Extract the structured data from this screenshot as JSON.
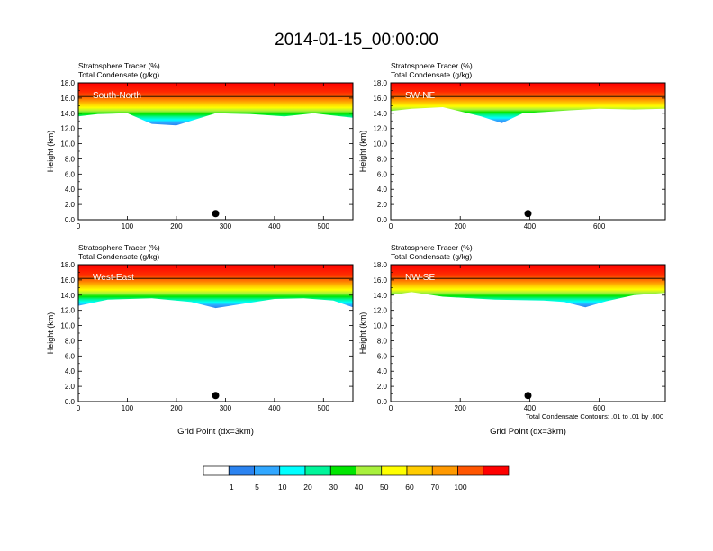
{
  "figure": {
    "title": "2014-01-15_00:00:00",
    "contour_note": "Total Condensate Contours: .01 to .01 by .000",
    "xlabel": "Grid Point (dx=3km)"
  },
  "colorbar": {
    "labels": [
      "1",
      "5",
      "10",
      "20",
      "30",
      "40",
      "50",
      "60",
      "70",
      "100"
    ],
    "colors": [
      "#ffffff",
      "#2b83f0",
      "#31a7ff",
      "#00ffff",
      "#00f59a",
      "#00e600",
      "#a8f03c",
      "#ffff00",
      "#ffcc00",
      "#ff9900",
      "#ff5500",
      "#ff0000"
    ]
  },
  "chart_data": [
    {
      "type": "heatmap",
      "panel": "South-North",
      "title_lines": [
        "Stratosphere Tracer   (%)",
        "Total Condensate   (g/kg)"
      ],
      "ylabel": "Height (km)",
      "xlim": [
        0,
        560
      ],
      "ylim": [
        0,
        18
      ],
      "xticks": [
        0,
        100,
        200,
        300,
        400,
        500
      ],
      "yticks": [
        "0.0",
        "2.0",
        "4.0",
        "6.0",
        "8.0",
        "10.0",
        "12.0",
        "14.0",
        "16.0",
        "18.0"
      ],
      "tropopause_km": [
        [
          0,
          13.6
        ],
        [
          40,
          13.9
        ],
        [
          100,
          14.0
        ],
        [
          150,
          12.6
        ],
        [
          200,
          12.4
        ],
        [
          240,
          13.2
        ],
        [
          280,
          14.0
        ],
        [
          350,
          13.9
        ],
        [
          420,
          13.6
        ],
        [
          480,
          14.0
        ],
        [
          560,
          13.4
        ]
      ],
      "marker_x": 280
    },
    {
      "type": "heatmap",
      "panel": "SW-NE",
      "title_lines": [
        "Stratosphere Tracer   (%)",
        "Total Condensate   (g/kg)"
      ],
      "ylabel": "Height (km)",
      "xlim": [
        0,
        790
      ],
      "ylim": [
        0,
        18
      ],
      "xticks": [
        0,
        200,
        400,
        600
      ],
      "yticks": [
        "0.0",
        "2.0",
        "4.0",
        "6.0",
        "8.0",
        "10.0",
        "12.0",
        "14.0",
        "16.0",
        "18.0"
      ],
      "tropopause_km": [
        [
          0,
          14.3
        ],
        [
          60,
          14.6
        ],
        [
          150,
          14.8
        ],
        [
          260,
          13.6
        ],
        [
          320,
          12.7
        ],
        [
          380,
          14.0
        ],
        [
          450,
          14.2
        ],
        [
          520,
          14.4
        ],
        [
          600,
          14.6
        ],
        [
          700,
          14.5
        ],
        [
          790,
          14.6
        ]
      ],
      "marker_x": 395
    },
    {
      "type": "heatmap",
      "panel": "West-East",
      "title_lines": [
        "Stratosphere Tracer   (%)",
        "Total Condensate   (g/kg)"
      ],
      "ylabel": "Height (km)",
      "xlim": [
        0,
        560
      ],
      "ylim": [
        0,
        18
      ],
      "xticks": [
        0,
        100,
        200,
        300,
        400,
        500
      ],
      "yticks": [
        "0.0",
        "2.0",
        "4.0",
        "6.0",
        "8.0",
        "10.0",
        "12.0",
        "14.0",
        "16.0",
        "18.0"
      ],
      "tropopause_km": [
        [
          0,
          12.6
        ],
        [
          60,
          13.4
        ],
        [
          150,
          13.6
        ],
        [
          230,
          13.1
        ],
        [
          280,
          12.3
        ],
        [
          330,
          12.8
        ],
        [
          400,
          13.5
        ],
        [
          460,
          13.6
        ],
        [
          520,
          13.3
        ],
        [
          560,
          12.4
        ]
      ],
      "marker_x": 280
    },
    {
      "type": "heatmap",
      "panel": "NW-SE",
      "title_lines": [
        "Stratosphere Tracer   (%)",
        "Total Condensate   (g/kg)"
      ],
      "ylabel": "Height (km)",
      "xlim": [
        0,
        790
      ],
      "ylim": [
        0,
        18
      ],
      "xticks": [
        0,
        200,
        400,
        600
      ],
      "yticks": [
        "0.0",
        "2.0",
        "4.0",
        "6.0",
        "8.0",
        "10.0",
        "12.0",
        "14.0",
        "16.0",
        "18.0"
      ],
      "tropopause_km": [
        [
          0,
          14.0
        ],
        [
          60,
          14.4
        ],
        [
          150,
          13.8
        ],
        [
          300,
          13.4
        ],
        [
          440,
          13.3
        ],
        [
          500,
          13.1
        ],
        [
          560,
          12.4
        ],
        [
          620,
          13.2
        ],
        [
          700,
          14.0
        ],
        [
          790,
          14.3
        ]
      ],
      "marker_x": 395
    }
  ]
}
